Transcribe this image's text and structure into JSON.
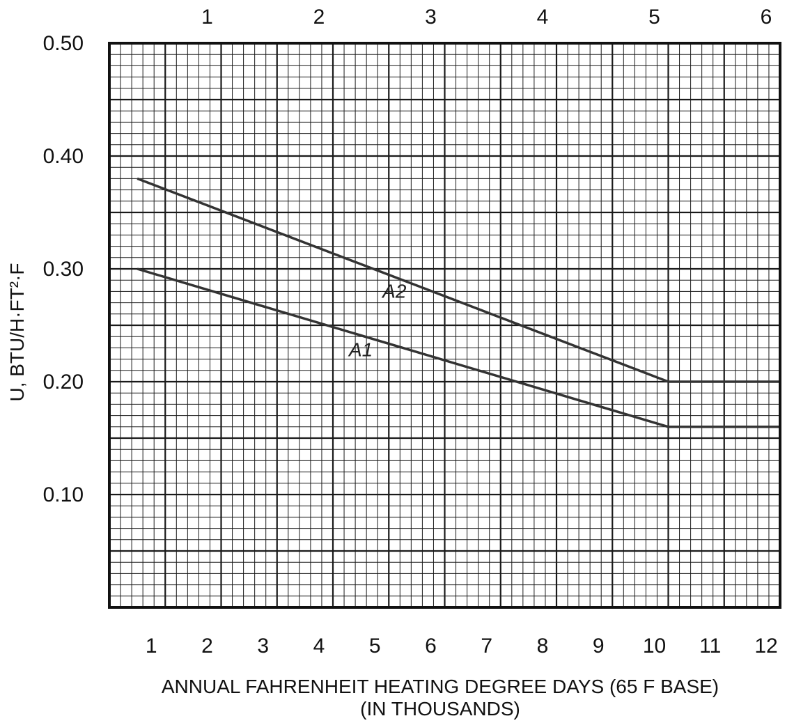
{
  "chart_data": {
    "type": "line",
    "xlabel": "ANNUAL FAHRENHEIT HEATING DEGREE DAYS (65 F BASE)",
    "xlabel_sub": "(IN THOUSANDS)",
    "ylabel": "U, BTU/H·FT²·F",
    "xlim": [
      0,
      12
    ],
    "ylim": [
      0,
      0.5
    ],
    "x_ticks": [
      "1",
      "2",
      "3",
      "4",
      "5",
      "6",
      "7",
      "8",
      "9",
      "10",
      "11",
      "12"
    ],
    "top_ticks": [
      "1",
      "2",
      "3",
      "4",
      "5",
      "6"
    ],
    "y_ticks": [
      "0.10",
      "0.20",
      "0.30",
      "0.40",
      "0.50"
    ],
    "grid": true,
    "series": [
      {
        "name": "A2",
        "color": "#333333",
        "points": [
          [
            0.5,
            0.38
          ],
          [
            10,
            0.2
          ],
          [
            12,
            0.2
          ]
        ]
      },
      {
        "name": "A1",
        "color": "#333333",
        "points": [
          [
            0.5,
            0.3
          ],
          [
            10,
            0.16
          ],
          [
            12,
            0.16
          ]
        ]
      }
    ]
  }
}
